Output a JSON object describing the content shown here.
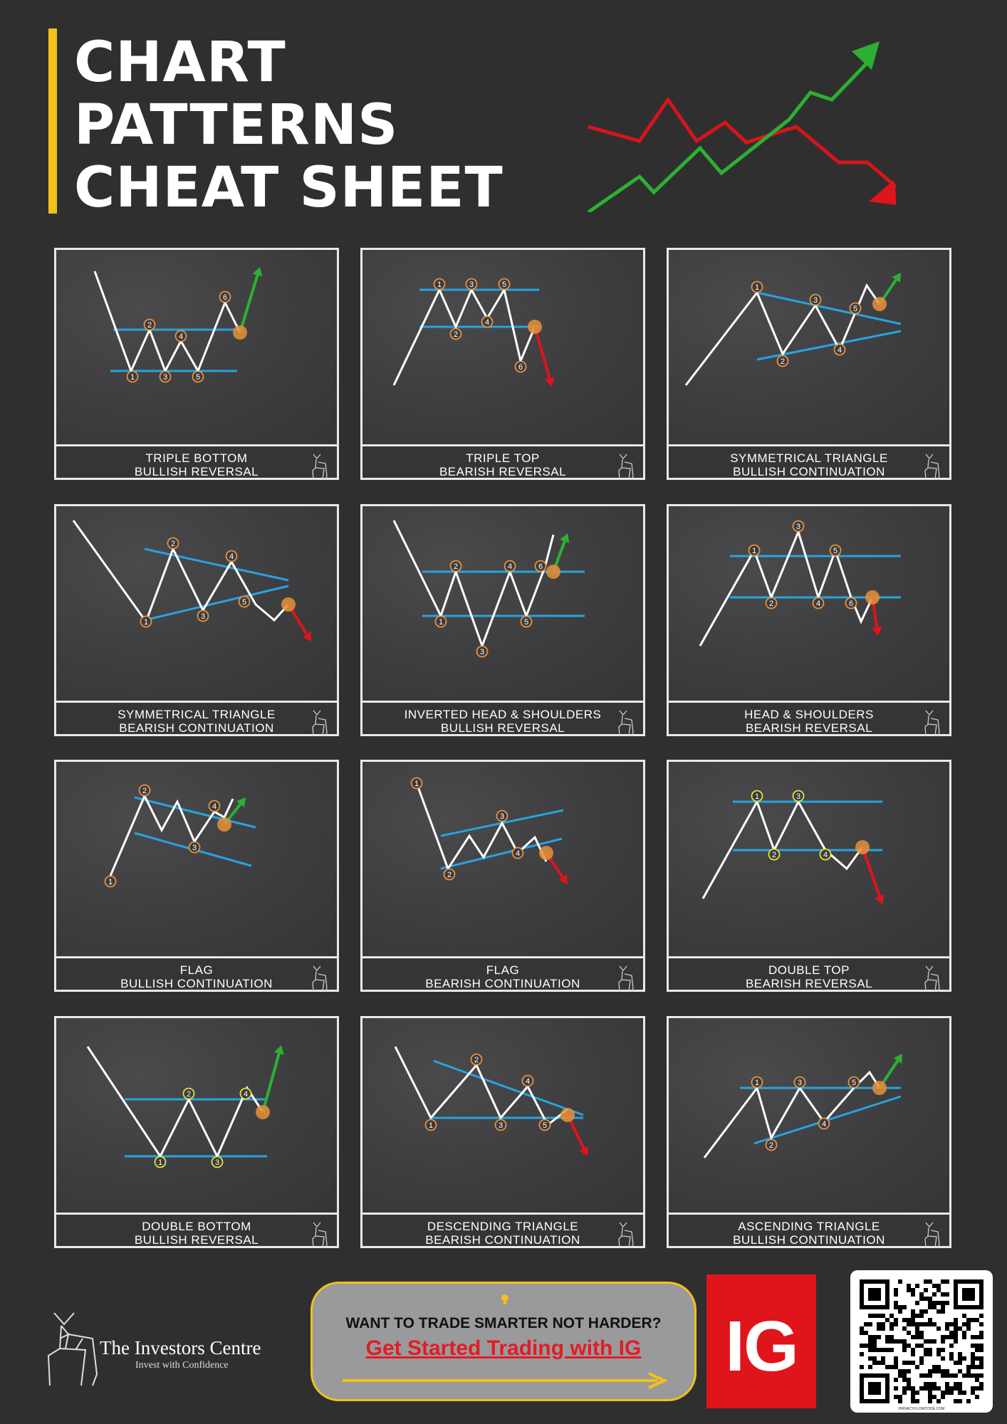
{
  "title": {
    "line1": "CHART",
    "line2": "PATTERNS",
    "line3": "CHEAT SHEET"
  },
  "colors": {
    "accent": "#f2c11b",
    "line": "#ffffff",
    "level": "#27a3e0",
    "bullish": "#2db032",
    "bearish": "#e0141b",
    "marker": "#e8913a",
    "marker_alt": "#e4e03a"
  },
  "cards": [
    {
      "name": "TRIPLE BOTTOM",
      "type": "BULLISH REVERSAL"
    },
    {
      "name": "TRIPLE TOP",
      "type": "BEARISH REVERSAL"
    },
    {
      "name": "SYMMETRICAL TRIANGLE",
      "type": "BULLISH CONTINUATION"
    },
    {
      "name": "SYMMETRICAL TRIANGLE",
      "type": "BEARISH CONTINUATION"
    },
    {
      "name": "INVERTED HEAD & SHOULDERS",
      "type": "BULLISH REVERSAL"
    },
    {
      "name": "HEAD & SHOULDERS",
      "type": "BEARISH REVERSAL"
    },
    {
      "name": "FLAG",
      "type": "BULLISH CONTINUATION"
    },
    {
      "name": "FLAG",
      "type": "BEARISH CONTINUATION"
    },
    {
      "name": "DOUBLE TOP",
      "type": "BEARISH REVERSAL"
    },
    {
      "name": "DOUBLE BOTTOM",
      "type": "BULLISH REVERSAL"
    },
    {
      "name": "DESCENDING TRIANGLE",
      "type": "BEARISH CONTINUATION"
    },
    {
      "name": "ASCENDING TRIANGLE",
      "type": "BULLISH CONTINUATION"
    }
  ],
  "brand": {
    "name": "The Investors Centre",
    "tagline": "Invest with Confidence"
  },
  "cta": {
    "question": "WANT TO TRADE SMARTER NOT HARDER?",
    "link": "Get Started Trading with IG"
  },
  "ig_logo": "IG",
  "qr": {
    "label": "PRIVACY.FLOWCODE.COM"
  }
}
